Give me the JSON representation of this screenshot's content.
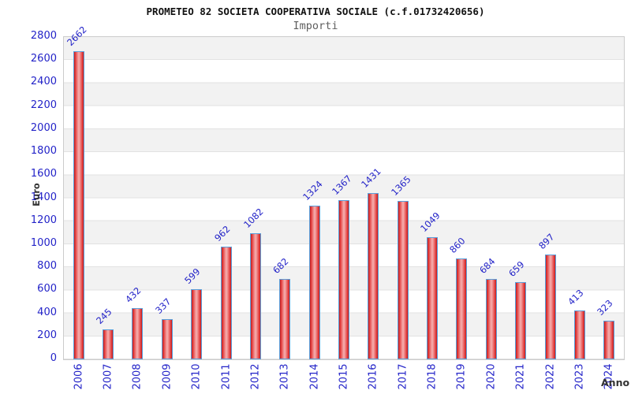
{
  "header": {
    "title": "PROMETEO 82 SOCIETA COOPERATIVA SOCIALE (c.f.01732420656)",
    "subtitle": "Importi"
  },
  "chart_data": {
    "type": "bar",
    "title": "PROMETEO 82 SOCIETA COOPERATIVA SOCIALE (c.f.01732420656)",
    "subtitle": "Importi",
    "xlabel": "Anno",
    "ylabel": "Euro",
    "categories": [
      "2006",
      "2007",
      "2008",
      "2009",
      "2010",
      "2011",
      "2012",
      "2013",
      "2014",
      "2015",
      "2016",
      "2017",
      "2018",
      "2019",
      "2020",
      "2021",
      "2022",
      "2023",
      "2024"
    ],
    "values": [
      2662,
      245,
      432,
      337,
      599,
      962,
      1082,
      682,
      1324,
      1367,
      1431,
      1365,
      1049,
      860,
      684,
      659,
      897,
      413,
      323
    ],
    "ylim": [
      0,
      2800
    ],
    "yticks": [
      0,
      200,
      400,
      600,
      800,
      1000,
      1200,
      1400,
      1600,
      1800,
      2000,
      2200,
      2400,
      2600,
      2800
    ],
    "grid": "horizontal alternating bands every 200, gridlines on",
    "legend": "none",
    "value_labels": "rotated 45deg above bars",
    "colors": {
      "label_blue": "#2323c8",
      "bar_border_blue": "#5aa0dc",
      "bar_red_edge": "#c21d1d",
      "bar_red_mid": "#e34040",
      "bar_red_center": "#f5a8a8",
      "band_gray": "#f2f2f2",
      "gridline": "#e2e2e2",
      "axis_text_dark": "#333333"
    }
  }
}
